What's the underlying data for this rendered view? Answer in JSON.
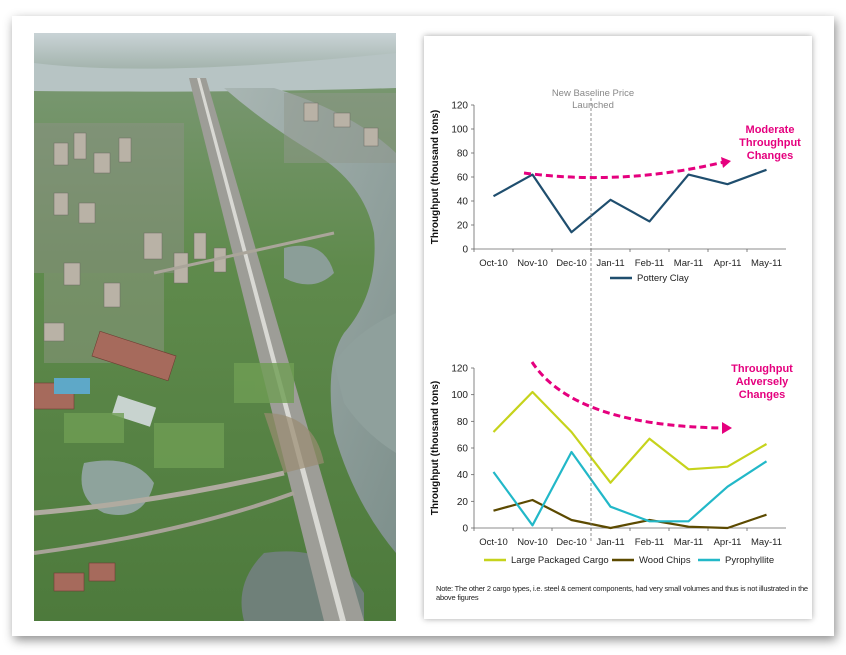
{
  "annotations": {
    "baseline_label_line1": "New Baseline Price",
    "baseline_label_line2": "Launched",
    "top_callout": [
      "Moderate",
      "Throughput",
      "Changes"
    ],
    "bottom_callout": [
      "Throughput",
      "Adversely",
      "Changes"
    ],
    "callout_color": "#e5007e"
  },
  "note": "Note: The other 2 cargo types, i.e. steel & cement components, had very small volumes and thus is not illustrated in the above figures",
  "chart_data": [
    {
      "type": "line",
      "categories": [
        "Oct-10",
        "Nov-10",
        "Dec-10",
        "Jan-11",
        "Feb-11",
        "Mar-11",
        "Apr-11",
        "May-11"
      ],
      "series": [
        {
          "name": "Pottery Clay",
          "color": "#1f4e6e",
          "values": [
            44,
            62,
            14,
            41,
            23,
            62,
            54,
            66
          ]
        }
      ],
      "ylabel": "Throughput (thousand tons)",
      "ylim": [
        0,
        120
      ],
      "yticks": [
        "0",
        "20",
        "40",
        "60",
        "80",
        "100",
        "120"
      ],
      "legend": "bottom"
    },
    {
      "type": "line",
      "categories": [
        "Oct-10",
        "Nov-10",
        "Dec-10",
        "Jan-11",
        "Feb-11",
        "Mar-11",
        "Apr-11",
        "May-11"
      ],
      "series": [
        {
          "name": "Large Packaged Cargo",
          "color": "#c6d31c",
          "values": [
            72,
            102,
            72,
            34,
            67,
            44,
            46,
            63
          ]
        },
        {
          "name": "Wood Chips",
          "color": "#5c4a00",
          "values": [
            13,
            21,
            6,
            0,
            6,
            1,
            0,
            10
          ]
        },
        {
          "name": "Pyrophyllite",
          "color": "#22b8c8",
          "values": [
            42,
            2,
            57,
            16,
            5,
            5,
            31,
            50
          ]
        }
      ],
      "ylabel": "Throughput (thousand tons)",
      "ylim": [
        0,
        120
      ],
      "yticks": [
        "0",
        "20",
        "40",
        "60",
        "80",
        "100",
        "120"
      ],
      "legend": "bottom"
    }
  ]
}
